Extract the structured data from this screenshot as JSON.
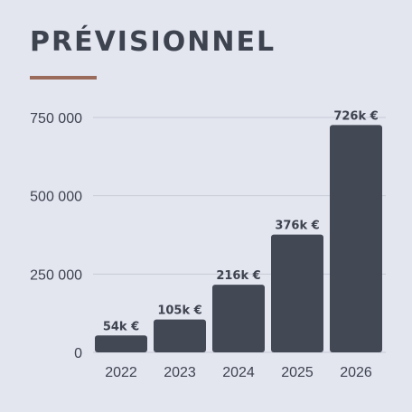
{
  "title": "PRÉVISIONNEL",
  "colors": {
    "background": "#e3e6ef",
    "bar": "#434855",
    "text": "#3e4350",
    "accent": "#9a6a5a",
    "grid": "#c7cad4"
  },
  "chart_data": {
    "type": "bar",
    "title": "PRÉVISIONNEL",
    "xlabel": "",
    "ylabel": "",
    "categories": [
      "2022",
      "2023",
      "2024",
      "2025",
      "2026"
    ],
    "values": [
      54000,
      105000,
      216000,
      376000,
      726000
    ],
    "data_labels": [
      "54k €",
      "105k €",
      "216k €",
      "376k €",
      "726k €"
    ],
    "ylim": [
      0,
      750000
    ],
    "yticks": [
      0,
      250000,
      500000,
      750000
    ],
    "ytick_labels": [
      "0",
      "250 000",
      "500 000",
      "750 000"
    ],
    "grid": true,
    "legend": "none"
  }
}
